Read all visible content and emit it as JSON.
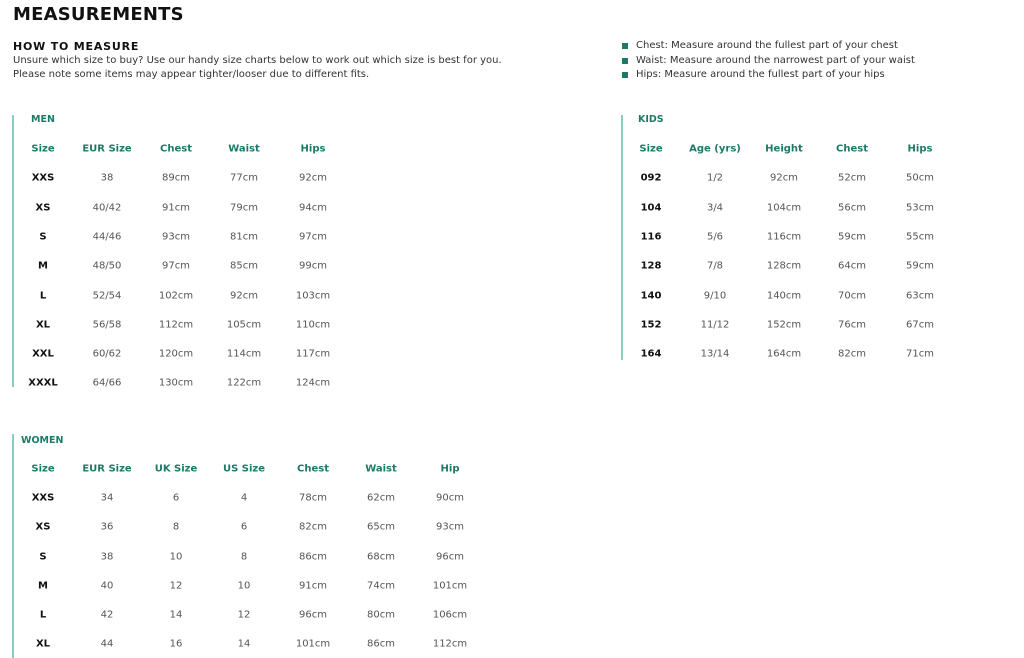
{
  "page_title": "MEASUREMENTS",
  "how_to_measure": {
    "heading": "HOW TO MEASURE",
    "lines": [
      "Unsure which size to buy? Use our handy size charts below to work out which size is best for you.",
      "Please note some items may appear tighter/looser due to different fits."
    ],
    "tips": [
      "Chest: Measure around the fullest part of your chest",
      "Waist: Measure around the narrowest part of your waist",
      "Hips: Measure around the fullest part of your hips"
    ]
  },
  "colors": {
    "accent": "#1d7a68",
    "rule": "#8ccbbd"
  },
  "tables": {
    "men": {
      "title": "MEN",
      "headers": [
        "Size",
        "EUR Size",
        "Chest",
        "Waist",
        "Hips"
      ],
      "rows": [
        [
          "XXS",
          "38",
          "89cm",
          "77cm",
          "92cm"
        ],
        [
          "XS",
          "40/42",
          "91cm",
          "79cm",
          "94cm"
        ],
        [
          "S",
          "44/46",
          "93cm",
          "81cm",
          "97cm"
        ],
        [
          "M",
          "48/50",
          "97cm",
          "85cm",
          "99cm"
        ],
        [
          "L",
          "52/54",
          "102cm",
          "92cm",
          "103cm"
        ],
        [
          "XL",
          "56/58",
          "112cm",
          "105cm",
          "110cm"
        ],
        [
          "XXL",
          "60/62",
          "120cm",
          "114cm",
          "117cm"
        ],
        [
          "XXXL",
          "64/66",
          "130cm",
          "122cm",
          "124cm"
        ]
      ]
    },
    "kids": {
      "title": "KIDS",
      "headers": [
        "Size",
        "Age (yrs)",
        "Height",
        "Chest",
        "Hips"
      ],
      "rows": [
        [
          "092",
          "1/2",
          "92cm",
          "52cm",
          "50cm"
        ],
        [
          "104",
          "3/4",
          "104cm",
          "56cm",
          "53cm"
        ],
        [
          "116",
          "5/6",
          "116cm",
          "59cm",
          "55cm"
        ],
        [
          "128",
          "7/8",
          "128cm",
          "64cm",
          "59cm"
        ],
        [
          "140",
          "9/10",
          "140cm",
          "70cm",
          "63cm"
        ],
        [
          "152",
          "11/12",
          "152cm",
          "76cm",
          "67cm"
        ],
        [
          "164",
          "13/14",
          "164cm",
          "82cm",
          "71cm"
        ]
      ]
    },
    "women": {
      "title": "WOMEN",
      "headers": [
        "Size",
        "EUR Size",
        "UK Size",
        "US Size",
        "Chest",
        "Waist",
        "Hip"
      ],
      "rows": [
        [
          "XXS",
          "34",
          "6",
          "4",
          "78cm",
          "62cm",
          "90cm"
        ],
        [
          "XS",
          "36",
          "8",
          "6",
          "82cm",
          "65cm",
          "93cm"
        ],
        [
          "S",
          "38",
          "10",
          "8",
          "86cm",
          "68cm",
          "96cm"
        ],
        [
          "M",
          "40",
          "12",
          "10",
          "91cm",
          "74cm",
          "101cm"
        ],
        [
          "L",
          "42",
          "14",
          "12",
          "96cm",
          "80cm",
          "106cm"
        ],
        [
          "XL",
          "44",
          "16",
          "14",
          "101cm",
          "86cm",
          "112cm"
        ]
      ]
    }
  }
}
